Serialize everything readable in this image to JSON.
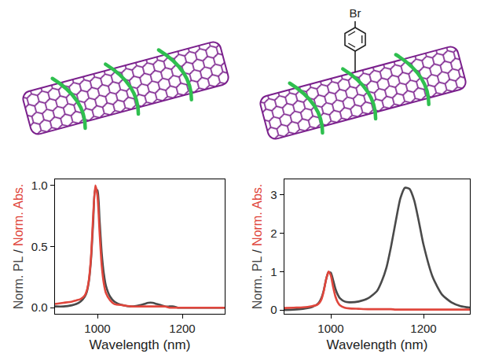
{
  "figure": {
    "substituent_label": "Br"
  },
  "chart_data": [
    {
      "type": "line",
      "xlabel": "Wavelength (nm)",
      "ylabel": "Norm. PL / Norm. Abs.",
      "x": [
        900,
        920,
        940,
        950,
        960,
        970,
        975,
        980,
        985,
        990,
        995,
        1000,
        1005,
        1010,
        1015,
        1020,
        1030,
        1040,
        1060,
        1080,
        1100,
        1110,
        1120,
        1130,
        1140,
        1150,
        1160,
        1170,
        1180,
        1190,
        1200,
        1220,
        1240,
        1260,
        1280,
        1300
      ],
      "xlim": [
        900,
        1300
      ],
      "xticks": [
        1000,
        1200
      ],
      "ylim": [
        -0.05,
        1.05
      ],
      "yticks": [
        {
          "value": 0,
          "label": "0.0"
        },
        {
          "value": 0.5,
          "label": "0.5"
        },
        {
          "value": 1,
          "label": "1.0"
        }
      ],
      "grid": false,
      "series": [
        {
          "name": "Norm. PL",
          "color": "#4a4a4a",
          "values": [
            0.01,
            0.01,
            0.02,
            0.03,
            0.05,
            0.09,
            0.13,
            0.22,
            0.4,
            0.7,
            0.97,
            0.96,
            0.72,
            0.45,
            0.28,
            0.18,
            0.09,
            0.05,
            0.02,
            0.01,
            0.02,
            0.03,
            0.04,
            0.04,
            0.03,
            0.02,
            0.01,
            0.01,
            0.01,
            0.0,
            0.0,
            0.0,
            0.0,
            0.0,
            0.0,
            0.0
          ]
        },
        {
          "name": "Norm. Abs.",
          "color": "#e0463c",
          "values": [
            0.03,
            0.04,
            0.05,
            0.06,
            0.07,
            0.1,
            0.14,
            0.23,
            0.42,
            0.75,
            1.0,
            0.92,
            0.62,
            0.35,
            0.2,
            0.12,
            0.06,
            0.03,
            0.02,
            0.01,
            0.01,
            0.01,
            0.01,
            0.01,
            0.01,
            0.01,
            0.01,
            0.0,
            0.0,
            0.0,
            0.0,
            0.0,
            0.0,
            0.0,
            0.0,
            0.0
          ]
        }
      ]
    },
    {
      "type": "line",
      "xlabel": "Wavelength (nm)",
      "ylabel": "Norm. PL / Norm. Abs.",
      "x": [
        900,
        920,
        940,
        950,
        960,
        970,
        975,
        980,
        985,
        990,
        995,
        1000,
        1005,
        1010,
        1015,
        1020,
        1030,
        1040,
        1060,
        1080,
        1100,
        1110,
        1120,
        1130,
        1140,
        1150,
        1160,
        1170,
        1180,
        1190,
        1200,
        1220,
        1240,
        1260,
        1280,
        1300
      ],
      "xlim": [
        900,
        1300
      ],
      "xticks": [
        1000,
        1200
      ],
      "ylim": [
        -0.1,
        3.4
      ],
      "yticks": [
        0,
        1,
        2,
        3
      ],
      "grid": false,
      "series": [
        {
          "name": "Norm. PL",
          "color": "#4a4a4a",
          "values": [
            0.0,
            0.01,
            0.03,
            0.05,
            0.08,
            0.14,
            0.2,
            0.32,
            0.52,
            0.8,
            0.98,
            0.97,
            0.78,
            0.55,
            0.4,
            0.3,
            0.22,
            0.2,
            0.22,
            0.3,
            0.5,
            0.75,
            1.1,
            1.65,
            2.3,
            2.9,
            3.18,
            3.15,
            2.85,
            2.3,
            1.7,
            0.85,
            0.4,
            0.2,
            0.1,
            0.06
          ]
        },
        {
          "name": "Norm. Abs.",
          "color": "#e0463c",
          "values": [
            0.05,
            0.06,
            0.07,
            0.08,
            0.1,
            0.13,
            0.18,
            0.28,
            0.5,
            0.8,
            1.0,
            0.9,
            0.6,
            0.35,
            0.2,
            0.12,
            0.06,
            0.04,
            0.03,
            0.02,
            0.02,
            0.02,
            0.02,
            0.02,
            0.01,
            0.01,
            0.01,
            0.01,
            0.01,
            0.01,
            0.01,
            0.01,
            0.01,
            0.01,
            0.01,
            0.01
          ]
        }
      ]
    }
  ]
}
